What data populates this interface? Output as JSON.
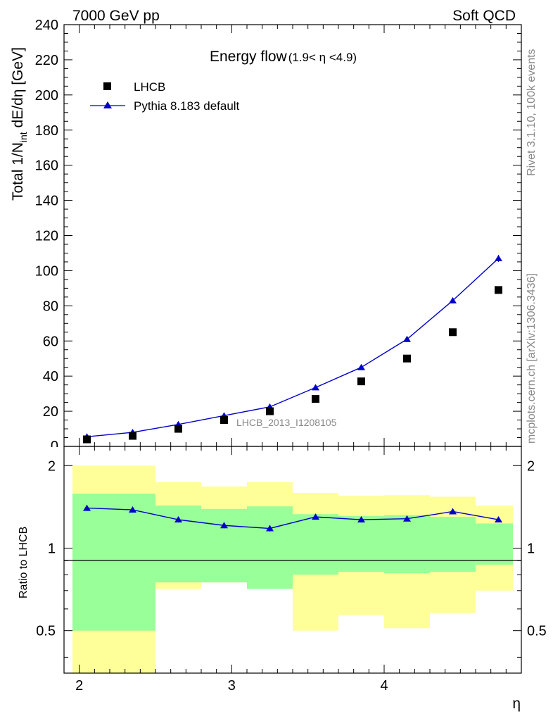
{
  "header": {
    "left": "7000 GeV pp",
    "right": "Soft QCD"
  },
  "side": {
    "rivet": "Rivet 3.1.10,  100k events",
    "mcplots": "mcplots.cern.ch [arXiv:1306.3436]"
  },
  "colors": {
    "mc": "#0000cc",
    "data": "#000000",
    "band_inner": "#99ff99",
    "band_outer": "#ffff99"
  },
  "chart_data": [
    {
      "type": "scatter",
      "title_main": "Energy flow",
      "title_range": "(1.9< η <4.9)",
      "ylabel": "Total 1/N",
      "ylabel_sub": "int",
      "ylabel_tail": " dE/dη [GeV]",
      "analysis_label": "LHCB_2013_I1208105",
      "xlim": [
        1.9,
        4.9
      ],
      "ylim": [
        0,
        240
      ],
      "yticks": [
        20,
        40,
        60,
        80,
        100,
        120,
        140,
        160,
        180,
        200,
        220,
        240
      ],
      "ytick_labels": [
        "20",
        "40",
        "60",
        "80",
        "100",
        "120",
        "140",
        "160",
        "180",
        "200",
        "220",
        "240"
      ],
      "legend_position": "top-left",
      "series": [
        {
          "name": "LHCB",
          "marker": "square",
          "x": [
            2.05,
            2.35,
            2.65,
            2.95,
            3.25,
            3.55,
            3.85,
            4.15,
            4.45,
            4.75
          ],
          "y": [
            4,
            6,
            10,
            15,
            20,
            27,
            37,
            50,
            65,
            89
          ]
        },
        {
          "name": "Pythia 8.183 default",
          "marker": "triangle",
          "x": [
            2.05,
            2.35,
            2.65,
            2.95,
            3.25,
            3.55,
            3.85,
            4.15,
            4.45,
            4.75
          ],
          "y": [
            5.5,
            8,
            12.5,
            17.5,
            22.5,
            33.5,
            45,
            61,
            83,
            107
          ],
          "yerr": [
            0.3,
            0.3,
            0.4,
            0.4,
            0.4,
            0.6,
            0.8,
            1.0,
            1.5,
            2.0
          ]
        }
      ]
    },
    {
      "type": "line",
      "ylabel": "Ratio to LHCB",
      "xlabel": "η",
      "xlim": [
        1.9,
        4.9
      ],
      "ylim": [
        0.35,
        2.35
      ],
      "xticks": [
        2,
        3,
        4
      ],
      "xtick_labels": [
        "2",
        "3",
        "4"
      ],
      "yticks": [
        0.5,
        1,
        2
      ],
      "ytick_labels": [
        "0.5",
        "1",
        "2"
      ],
      "bands": {
        "edges": [
          1.9,
          2.2,
          2.5,
          2.8,
          3.1,
          3.4,
          3.7,
          4.0,
          4.3,
          4.6,
          4.9
        ],
        "inner_low": [
          0.5,
          0.5,
          0.75,
          0.75,
          0.71,
          0.8,
          0.82,
          0.81,
          0.82,
          0.87,
          0.87
        ],
        "inner_high": [
          1.58,
          1.58,
          1.43,
          1.39,
          1.42,
          1.33,
          1.31,
          1.32,
          1.3,
          1.23,
          1.23
        ],
        "outer_low": [
          0.35,
          0.35,
          0.71,
          0.75,
          0.71,
          0.5,
          0.57,
          0.51,
          0.58,
          0.7,
          0.7
        ],
        "outer_high": [
          2.0,
          2.0,
          1.74,
          1.68,
          1.74,
          1.59,
          1.55,
          1.56,
          1.54,
          1.43,
          1.43
        ]
      },
      "series": [
        {
          "name": "Pythia 8.183 default",
          "x": [
            2.05,
            2.35,
            2.65,
            2.95,
            3.25,
            3.55,
            3.85,
            4.15,
            4.45,
            4.75
          ],
          "y": [
            1.4,
            1.38,
            1.27,
            1.21,
            1.18,
            1.3,
            1.27,
            1.28,
            1.36,
            1.27
          ],
          "yerr": [
            0.03,
            0.03,
            0.03,
            0.03,
            0.03,
            0.03,
            0.03,
            0.02,
            0.02,
            0.02
          ]
        }
      ]
    }
  ]
}
